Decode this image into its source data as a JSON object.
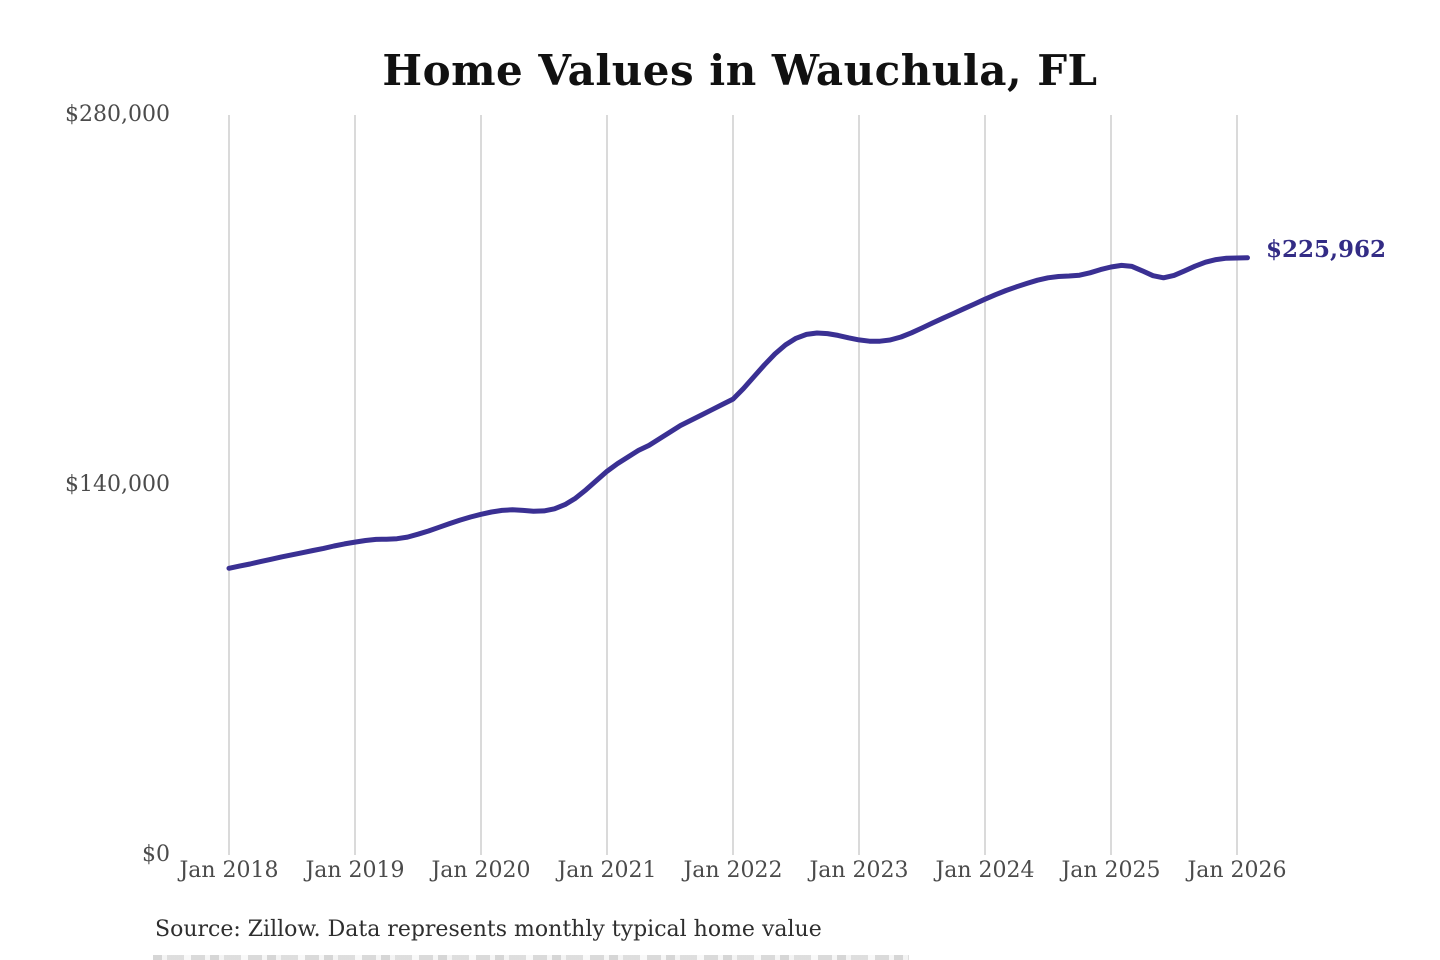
{
  "title": "Home Values in Wauchula, FL",
  "latest_value_label": "$225,962",
  "source_note": "Source: Zillow. Data represents monthly typical home value",
  "colors": {
    "line": "#3a3093",
    "latest_value_text": "#332c85",
    "grid": "#cbcbcb",
    "axis_text": "#4b4b4b",
    "title_text": "#111111",
    "source_text": "#2e2e2e"
  },
  "chart_data": {
    "type": "line",
    "title": "Home Values in Wauchula, FL",
    "xlabel": "",
    "ylabel": "",
    "ylim": [
      0,
      280000
    ],
    "grid": "vertical-only",
    "legend": "none",
    "series_name": "Monthly typical home value",
    "start_month": "2018-01",
    "frequency": "monthly",
    "latest_value": 225962,
    "latest_value_label": "$225,962",
    "y_ticks": [
      {
        "label": "$0",
        "value": 0
      },
      {
        "label": "$140,000",
        "value": 140000
      },
      {
        "label": "$280,000",
        "value": 280000
      }
    ],
    "x_ticks": [
      {
        "label": "Jan 2018",
        "month_index": 0
      },
      {
        "label": "Jan 2019",
        "month_index": 12
      },
      {
        "label": "Jan 2020",
        "month_index": 24
      },
      {
        "label": "Jan 2021",
        "month_index": 36
      },
      {
        "label": "Jan 2022",
        "month_index": 48
      },
      {
        "label": "Jan 2023",
        "month_index": 60
      },
      {
        "label": "Jan 2024",
        "month_index": 72
      },
      {
        "label": "Jan 2025",
        "month_index": 84
      },
      {
        "label": "Jan 2026",
        "month_index": 96
      }
    ],
    "values_by_year": {
      "2018": [
        108500,
        109300,
        110100,
        111000,
        111900,
        112800,
        113600,
        114400,
        115200,
        116000,
        116900,
        117700
      ],
      "2019": [
        118400,
        119000,
        119400,
        119500,
        119700,
        120300,
        121400,
        122600,
        124000,
        125400,
        126700,
        127900
      ],
      "2020": [
        128900,
        129800,
        130400,
        130600,
        130400,
        130100,
        130200,
        131000,
        132600,
        135000,
        138200,
        141700
      ],
      "2021": [
        145200,
        148100,
        150600,
        153100,
        155000,
        157500,
        160000,
        162500,
        164500,
        166500,
        168500,
        170500
      ],
      "2022": [
        172500,
        176500,
        181000,
        185500,
        189600,
        193000,
        195500,
        197000,
        197500,
        197300,
        196600,
        195700
      ],
      "2023": [
        194900,
        194400,
        194400,
        194900,
        196000,
        197600,
        199400,
        201300,
        203100,
        204900,
        206700,
        208500
      ],
      "2024": [
        210300,
        212000,
        213600,
        215000,
        216300,
        217500,
        218400,
        218900,
        219100,
        219400,
        220300,
        221500
      ],
      "2025": [
        222500,
        223100,
        222700,
        221000,
        219200,
        218400,
        219300,
        221000,
        222800,
        224300,
        225300,
        225800
      ],
      "2026": [
        225900,
        225962
      ]
    }
  }
}
